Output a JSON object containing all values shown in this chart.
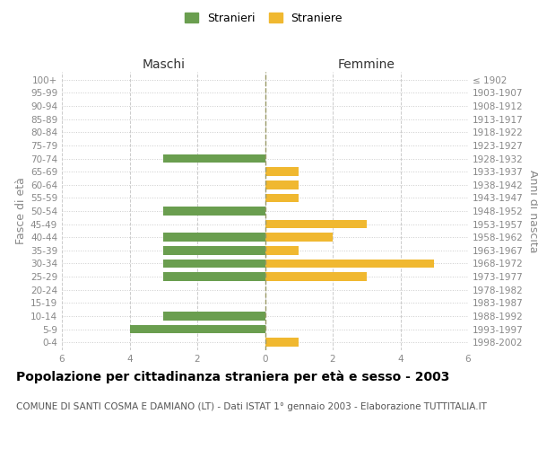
{
  "age_groups": [
    "0-4",
    "5-9",
    "10-14",
    "15-19",
    "20-24",
    "25-29",
    "30-34",
    "35-39",
    "40-44",
    "45-49",
    "50-54",
    "55-59",
    "60-64",
    "65-69",
    "70-74",
    "75-79",
    "80-84",
    "85-89",
    "90-94",
    "95-99",
    "100+"
  ],
  "birth_years": [
    "1998-2002",
    "1993-1997",
    "1988-1992",
    "1983-1987",
    "1978-1982",
    "1973-1977",
    "1968-1972",
    "1963-1967",
    "1958-1962",
    "1953-1957",
    "1948-1952",
    "1943-1947",
    "1938-1942",
    "1933-1937",
    "1928-1932",
    "1923-1927",
    "1918-1922",
    "1913-1917",
    "1908-1912",
    "1903-1907",
    "≤ 1902"
  ],
  "males": [
    0,
    4,
    3,
    0,
    0,
    3,
    3,
    3,
    3,
    0,
    3,
    0,
    0,
    0,
    3,
    0,
    0,
    0,
    0,
    0,
    0
  ],
  "females": [
    1,
    0,
    0,
    0,
    0,
    3,
    5,
    1,
    2,
    3,
    0,
    1,
    1,
    1,
    0,
    0,
    0,
    0,
    0,
    0,
    0
  ],
  "male_color": "#6a9e4f",
  "female_color": "#f0b830",
  "male_label": "Stranieri",
  "female_label": "Straniere",
  "xlabel_left": "Maschi",
  "xlabel_right": "Femmine",
  "ylabel_left": "Fasce di età",
  "ylabel_right": "Anni di nascita",
  "xlim": 6,
  "title": "Popolazione per cittadinanza straniera per età e sesso - 2003",
  "subtitle": "COMUNE DI SANTI COSMA E DAMIANO (LT) - Dati ISTAT 1° gennaio 2003 - Elaborazione TUTTITALIA.IT",
  "bg_color": "#ffffff",
  "grid_color": "#cccccc",
  "center_line_color": "#999966",
  "tick_color": "#888888",
  "title_fontsize": 10,
  "subtitle_fontsize": 7.5,
  "axis_label_fontsize": 9,
  "tick_fontsize": 7.5,
  "legend_fontsize": 9,
  "maschi_femmine_fontsize": 10
}
